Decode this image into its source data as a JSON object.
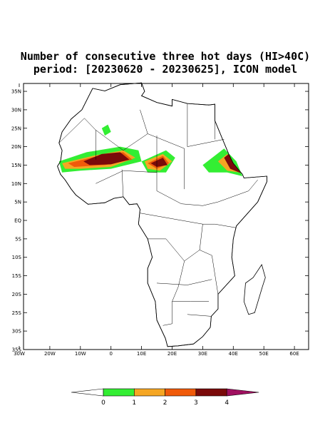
{
  "header": {
    "title_lines": [
      "Number of consecutive three hot days (HI>40C)",
      "period: [20230620 - 20230625], ICON model"
    ]
  },
  "map": {
    "lat_ticks": [
      {
        "value": 35,
        "label": "35N"
      },
      {
        "value": 30,
        "label": "30N"
      },
      {
        "value": 25,
        "label": "25N"
      },
      {
        "value": 20,
        "label": "20N"
      },
      {
        "value": 15,
        "label": "15N"
      },
      {
        "value": 10,
        "label": "10N"
      },
      {
        "value": 5,
        "label": "5N"
      },
      {
        "value": 0,
        "label": "EQ"
      },
      {
        "value": -5,
        "label": "5S"
      },
      {
        "value": -10,
        "label": "10S"
      },
      {
        "value": -15,
        "label": "15S"
      },
      {
        "value": -20,
        "label": "20S"
      },
      {
        "value": -25,
        "label": "25S"
      },
      {
        "value": -30,
        "label": "30S"
      },
      {
        "value": -35,
        "label": "35S"
      }
    ],
    "lon_ticks": [
      {
        "value": -30,
        "label": "30W"
      },
      {
        "value": -20,
        "label": "20W"
      },
      {
        "value": -10,
        "label": "10W"
      },
      0,
      {
        "value": 10,
        "label": "10E"
      },
      {
        "value": 20,
        "label": "20E"
      },
      {
        "value": 30,
        "label": "30E"
      },
      {
        "value": 40,
        "label": "40E"
      },
      {
        "value": 50,
        "label": "50E"
      },
      {
        "value": 60,
        "label": "60E"
      }
    ]
  },
  "colorbar": {
    "labels": [
      0,
      1,
      2,
      3,
      4
    ],
    "colors": [
      "#ffffff",
      "#33ee33",
      "#f5a623",
      "#f05a0a",
      "#7a0a0a",
      "#a01060"
    ]
  }
}
